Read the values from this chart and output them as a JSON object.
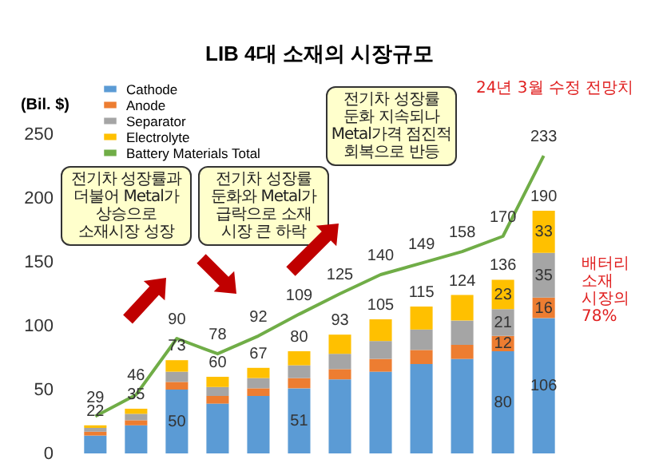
{
  "chart_data": {
    "type": "bar",
    "title": "LIB 4대 소재의 시장규모",
    "ylabel": "(Bil. $)",
    "categories": [
      null,
      null,
      null,
      null,
      null,
      null,
      null,
      null,
      null,
      null,
      null,
      null
    ],
    "stacked": true,
    "ylim": [
      0,
      250
    ],
    "yticks": [
      0,
      50,
      100,
      150,
      200,
      250
    ],
    "grid": false,
    "legend": "top left",
    "tick_labels": "y",
    "series": [
      {
        "name": "Cathode",
        "color": "#5b9bd5",
        "values": [
          14,
          22,
          50,
          39,
          45,
          51,
          58,
          64,
          70,
          74,
          80,
          106
        ],
        "value_labels": [
          null,
          null,
          "50",
          null,
          null,
          "51",
          null,
          null,
          null,
          null,
          "80",
          "106"
        ]
      },
      {
        "name": "Anode",
        "color": "#ed7d31",
        "values": [
          3,
          4,
          6,
          6,
          6,
          8,
          8,
          10,
          11,
          11,
          12,
          16
        ],
        "value_labels": [
          null,
          null,
          null,
          null,
          null,
          null,
          null,
          null,
          null,
          null,
          "12",
          "16"
        ]
      },
      {
        "name": "Separator",
        "color": "#a5a5a5",
        "values": [
          3,
          5,
          8,
          7,
          8,
          10,
          12,
          14,
          16,
          19,
          21,
          35
        ],
        "value_labels": [
          null,
          null,
          null,
          null,
          null,
          null,
          null,
          null,
          null,
          null,
          "21",
          "35"
        ]
      },
      {
        "name": "Electrolyte",
        "color": "#ffc000",
        "values": [
          2,
          4,
          9,
          8,
          8,
          11,
          15,
          17,
          18,
          20,
          23,
          33
        ],
        "value_labels": [
          null,
          null,
          null,
          null,
          null,
          null,
          null,
          null,
          null,
          null,
          "23",
          "33"
        ]
      },
      {
        "name": "Battery Materials Total",
        "type": "line",
        "color": "#70ad47",
        "values": [
          29,
          46,
          90,
          78,
          92,
          109,
          125,
          140,
          149,
          158,
          170,
          233
        ],
        "value_labels": [
          "29",
          "46",
          "90",
          "78",
          "92",
          "109",
          "125",
          "140",
          "149",
          "158",
          "170",
          "233"
        ]
      }
    ],
    "totals": [
      "22",
      "35",
      "73",
      "60",
      "67",
      "80",
      "93",
      "105",
      "115",
      "124",
      "136",
      "190"
    ],
    "annotations": [
      "24년 3월 수정 전망치",
      "배터리 소재 시장의 78%",
      "전기차 성장률과 더불어 Metal가 상승으로 소재시장 성장",
      "전기차 성장률 둔화와 Metal가 급락으로 소재 시장 큰 하락",
      "전기차 성장률 둔화 지속되나 Metal가격 점진적 회복으로 반등"
    ]
  }
}
